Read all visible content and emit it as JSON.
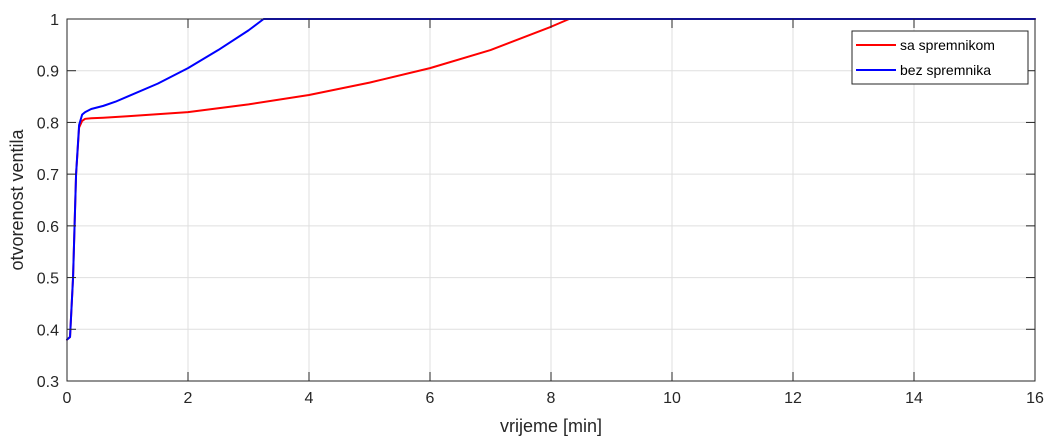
{
  "chart_data": {
    "type": "line",
    "title": "",
    "xlabel": "vrijeme [min]",
    "ylabel": "otvorenost ventila",
    "xlim": [
      0,
      16
    ],
    "ylim": [
      0.3,
      1
    ],
    "xticks": [
      0,
      2,
      4,
      6,
      8,
      10,
      12,
      14,
      16
    ],
    "yticks": [
      0.3,
      0.4,
      0.5,
      0.6,
      0.7,
      0.8,
      0.9,
      1
    ],
    "ytick_labels": [
      "0.3",
      "0.4",
      "0.5",
      "0.6",
      "0.7",
      "0.8",
      "0.9",
      "1"
    ],
    "grid": true,
    "legend_position": "top-right",
    "series": [
      {
        "name": "sa spremnikom",
        "color": "#ff0000",
        "x": [
          0,
          0.05,
          0.1,
          0.15,
          0.2,
          0.25,
          0.3,
          0.4,
          0.6,
          1,
          2,
          3,
          4,
          5,
          6,
          7,
          8,
          8.3,
          10,
          12,
          14,
          16
        ],
        "y": [
          0.38,
          0.385,
          0.5,
          0.7,
          0.79,
          0.803,
          0.807,
          0.808,
          0.809,
          0.812,
          0.82,
          0.835,
          0.853,
          0.877,
          0.905,
          0.94,
          0.985,
          1,
          1,
          1,
          1,
          1
        ]
      },
      {
        "name": "bez spremnika",
        "color": "#0000ff",
        "x": [
          0,
          0.05,
          0.1,
          0.15,
          0.2,
          0.25,
          0.3,
          0.4,
          0.6,
          0.8,
          1,
          1.5,
          2,
          2.5,
          3,
          3.25,
          4,
          6,
          8,
          10,
          12,
          14,
          16
        ],
        "y": [
          0.38,
          0.385,
          0.5,
          0.7,
          0.795,
          0.815,
          0.82,
          0.826,
          0.832,
          0.84,
          0.85,
          0.875,
          0.905,
          0.94,
          0.978,
          1,
          1,
          1,
          1,
          1,
          1,
          1,
          1
        ]
      }
    ]
  }
}
